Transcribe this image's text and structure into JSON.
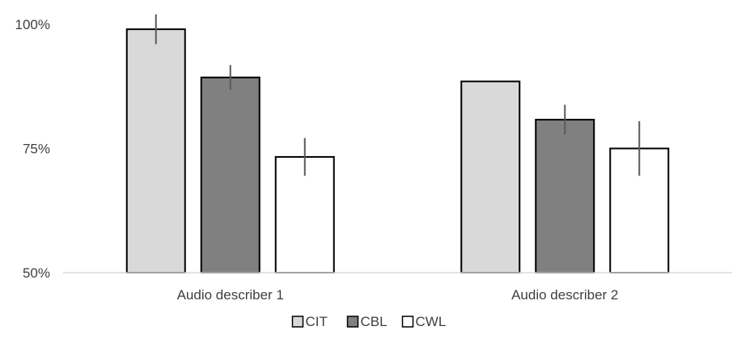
{
  "chart_data": {
    "type": "bar",
    "categories": [
      "Audio describer 1",
      "Audio describer 2"
    ],
    "series": [
      {
        "name": "CIT",
        "values": [
          0.99,
          0.885
        ],
        "errors": [
          0.03,
          0.0
        ],
        "color": "#d9d9d9"
      },
      {
        "name": "CBL",
        "values": [
          0.893,
          0.808
        ],
        "errors": [
          0.025,
          0.03
        ],
        "color": "#808080"
      },
      {
        "name": "CWL",
        "values": [
          0.733,
          0.75
        ],
        "errors": [
          0.038,
          0.055
        ],
        "color": "#ffffff"
      }
    ],
    "yticks": [
      {
        "value": 0.5,
        "label": "50%"
      },
      {
        "value": 0.75,
        "label": "75%"
      },
      {
        "value": 1.0,
        "label": "100%"
      }
    ],
    "ylim": [
      0.5,
      1.0
    ],
    "title": "",
    "xlabel": "",
    "ylabel": "",
    "legend_position": "bottom",
    "grid": false,
    "colors": {
      "bar_stroke": "#000000",
      "error_bar": "#595959",
      "axis": "#d9d9d9",
      "text": "#404040"
    }
  }
}
